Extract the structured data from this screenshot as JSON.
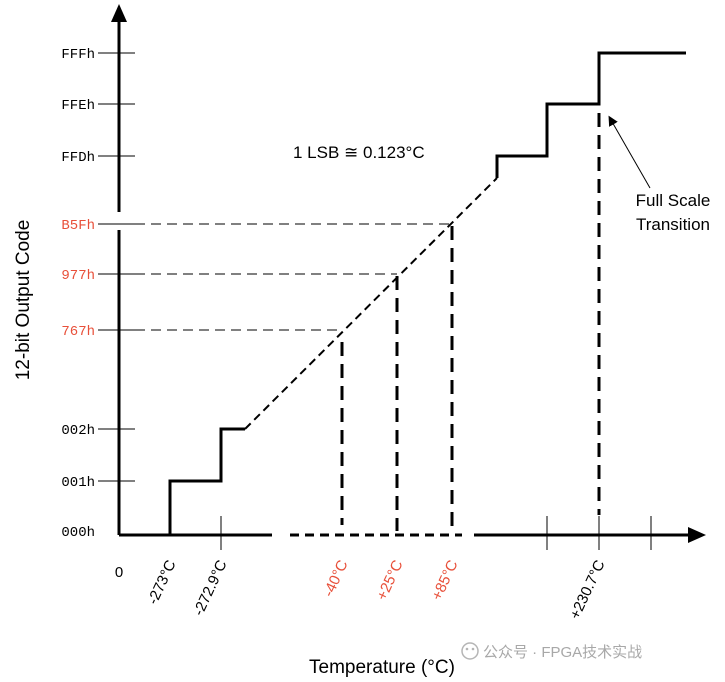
{
  "y_axis": {
    "title": "12-bit Output Code",
    "ticks": [
      {
        "label": "FFFh",
        "color": "#000000"
      },
      {
        "label": "FFEh",
        "color": "#000000"
      },
      {
        "label": "FFDh",
        "color": "#000000"
      },
      {
        "label": "B5Fh",
        "color": "#e8503a"
      },
      {
        "label": "977h",
        "color": "#e8503a"
      },
      {
        "label": "767h",
        "color": "#e8503a"
      },
      {
        "label": "002h",
        "color": "#000000"
      },
      {
        "label": "001h",
        "color": "#000000"
      },
      {
        "label": "000h",
        "color": "#000000"
      }
    ]
  },
  "x_axis": {
    "title": "Temperature (°C)",
    "origin_label": "0",
    "ticks": [
      {
        "label": "-273°C",
        "color": "#000000"
      },
      {
        "label": "-272.9°C",
        "color": "#000000"
      },
      {
        "label": "-40°C",
        "color": "#e8503a"
      },
      {
        "label": "+25°C",
        "color": "#e8503a"
      },
      {
        "label": "+85°C",
        "color": "#e8503a"
      },
      {
        "label": "+230.7°C",
        "color": "#000000"
      }
    ]
  },
  "annotations": {
    "lsb": "1 LSB  ≅ 0.123°C",
    "full_scale_line1": "Full Scale",
    "full_scale_line2": "Transition"
  },
  "watermark": "公众号 · FPGA技术实战",
  "colors": {
    "highlight": "#e8503a",
    "axis": "#000000"
  }
}
